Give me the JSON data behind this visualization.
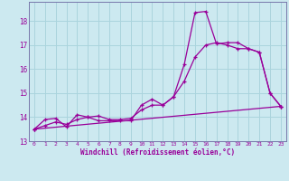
{
  "xlabel": "Windchill (Refroidissement éolien,°C)",
  "background_color": "#cce9f0",
  "grid_color": "#aad4dd",
  "line_color": "#990099",
  "spine_color": "#7777aa",
  "xlim": [
    -0.5,
    23.5
  ],
  "ylim": [
    13.0,
    18.8
  ],
  "yticks": [
    13,
    14,
    15,
    16,
    17,
    18
  ],
  "xticks": [
    0,
    1,
    2,
    3,
    4,
    5,
    6,
    7,
    8,
    9,
    10,
    11,
    12,
    13,
    14,
    15,
    16,
    17,
    18,
    19,
    20,
    21,
    22,
    23
  ],
  "line1_x": [
    0,
    1,
    2,
    3,
    4,
    5,
    6,
    7,
    8,
    9,
    10,
    11,
    12,
    13,
    14,
    15,
    16,
    17,
    18,
    19,
    20,
    21,
    22,
    23
  ],
  "line1_y": [
    13.5,
    13.9,
    13.95,
    13.6,
    14.1,
    14.0,
    13.85,
    13.85,
    13.85,
    13.85,
    14.5,
    14.75,
    14.5,
    14.85,
    16.2,
    18.35,
    18.4,
    17.05,
    17.1,
    17.1,
    16.85,
    16.7,
    15.0,
    14.45
  ],
  "line2_x": [
    0,
    1,
    2,
    3,
    4,
    5,
    6,
    7,
    8,
    9,
    10,
    11,
    12,
    13,
    14,
    15,
    16,
    17,
    18,
    19,
    20,
    21,
    22,
    23
  ],
  "line2_y": [
    13.5,
    13.65,
    13.8,
    13.7,
    13.9,
    14.0,
    14.05,
    13.9,
    13.9,
    13.95,
    14.3,
    14.5,
    14.5,
    14.85,
    15.5,
    16.5,
    17.0,
    17.1,
    17.0,
    16.85,
    16.85,
    16.7,
    15.0,
    14.45
  ],
  "line3_x": [
    0,
    23
  ],
  "line3_y": [
    13.5,
    14.45
  ]
}
